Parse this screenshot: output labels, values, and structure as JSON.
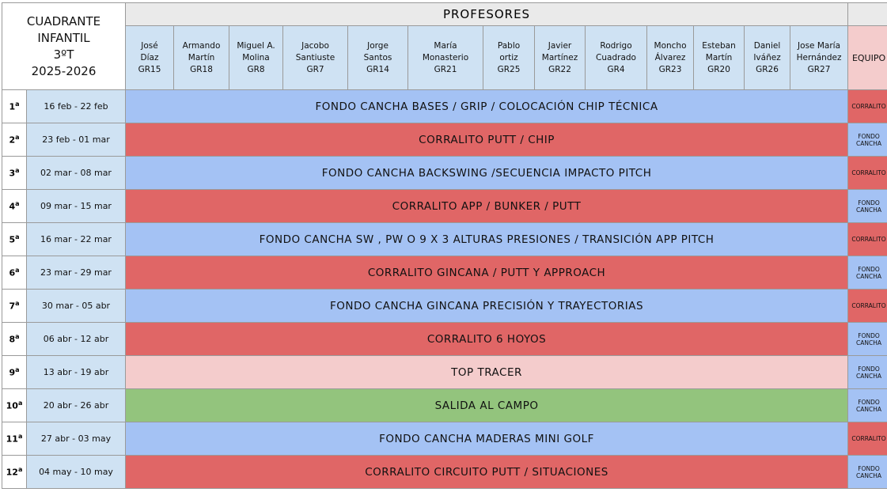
{
  "header": {
    "title_lines": [
      "CUADRANTE",
      "INFANTIL",
      "3ºT",
      "2025-2026"
    ],
    "profesores_label": "PROFESORES",
    "equipo_label": "EQUIPO"
  },
  "teachers": [
    {
      "first": "José",
      "last": "Díaz",
      "group": "GR15"
    },
    {
      "first": "Armando",
      "last": "Martín",
      "group": "GR18"
    },
    {
      "first": "Miguel A.",
      "last": "Molina",
      "group": "GR8"
    },
    {
      "first": "Jacobo",
      "last": "Santiuste",
      "group": "GR7"
    },
    {
      "first": "Jorge",
      "last": "Santos",
      "group": "GR14"
    },
    {
      "first": "María",
      "last": "Monasterio",
      "group": "GR21"
    },
    {
      "first": "Pablo",
      "last": "ortiz",
      "group": "GR25"
    },
    {
      "first": "Javier",
      "last": "Martínez",
      "group": "GR22"
    },
    {
      "first": "Rodrigo",
      "last": "Cuadrado",
      "group": "GR4"
    },
    {
      "first": "Moncho",
      "last": "Álvarez",
      "group": "GR23"
    },
    {
      "first": "Esteban",
      "last": "Martín",
      "group": "GR20"
    },
    {
      "first": "Daniel",
      "last": "Iváñez",
      "group": "GR26"
    },
    {
      "first": "Jose María",
      "last": "Hernández",
      "group": "GR27"
    }
  ],
  "weeks": [
    {
      "num": "1",
      "sup": "a",
      "dates": "16 feb - 22 feb",
      "activity": "FONDO CANCHA BASES / GRIP / COLOCACIÓN CHIP TÉCNICA",
      "color": "blue",
      "equipo": [
        "CORRALITO"
      ],
      "equipo_color": "red"
    },
    {
      "num": "2",
      "sup": "a",
      "dates": "23 feb - 01 mar",
      "activity": "CORRALITO PUTT / CHIP",
      "color": "red",
      "equipo": [
        "FONDO",
        "CANCHA"
      ],
      "equipo_color": "blue"
    },
    {
      "num": "3",
      "sup": "a",
      "dates": "02 mar - 08 mar",
      "activity": "FONDO CANCHA BACKSWING /SECUENCIA IMPACTO PITCH",
      "color": "blue",
      "equipo": [
        "CORRALITO"
      ],
      "equipo_color": "red"
    },
    {
      "num": "4",
      "sup": "a",
      "dates": "09 mar - 15 mar",
      "activity": "CORRALITO APP / BUNKER / PUTT",
      "color": "red",
      "equipo": [
        "FONDO",
        "CANCHA"
      ],
      "equipo_color": "blue"
    },
    {
      "num": "5",
      "sup": "a",
      "dates": "16 mar - 22 mar",
      "activity": "FONDO CANCHA SW , PW o 9 X 3 ALTURAS PRESIONES / TRANSICIÓN APP PITCH",
      "color": "blue",
      "equipo": [
        "CORRALITO"
      ],
      "equipo_color": "red"
    },
    {
      "num": "6",
      "sup": "a",
      "dates": "23 mar - 29 mar",
      "activity": "CORRALITO GINCANA / PUTT Y APPROACH",
      "color": "red",
      "equipo": [
        "FONDO",
        "CANCHA"
      ],
      "equipo_color": "blue"
    },
    {
      "num": "7",
      "sup": "a",
      "dates": "30 mar - 05 abr",
      "activity": "FONDO CANCHA GINCANA PRECISIÓN Y TRAYECTORIAS",
      "color": "blue",
      "equipo": [
        "CORRALITO"
      ],
      "equipo_color": "red"
    },
    {
      "num": "8",
      "sup": "a",
      "dates": "06 abr - 12 abr",
      "activity": "CORRALITO 6 HOYOS",
      "color": "red",
      "equipo": [
        "FONDO",
        "CANCHA"
      ],
      "equipo_color": "blue"
    },
    {
      "num": "9",
      "sup": "a",
      "dates": "13 abr - 19 abr",
      "activity": "TOP  TRACER",
      "color": "pink",
      "equipo": [
        "FONDO",
        "CANCHA"
      ],
      "equipo_color": "blue"
    },
    {
      "num": "10",
      "sup": "a",
      "dates": "20 abr - 26 abr",
      "activity": "SALIDA AL CAMPO",
      "color": "green",
      "equipo": [
        "FONDO",
        "CANCHA"
      ],
      "equipo_color": "blue"
    },
    {
      "num": "11",
      "sup": "a",
      "dates": "27 abr - 03 may",
      "activity": "FONDO CANCHA MADERAS MINI GOLF",
      "color": "blue",
      "equipo": [
        "CORRALITO"
      ],
      "equipo_color": "red"
    },
    {
      "num": "12",
      "sup": "a",
      "dates": "04 may - 10 may",
      "activity": "CORRALITO CIRCUITO PUTT / SITUACIONES",
      "color": "red",
      "equipo": [
        "FONDO",
        "CANCHA"
      ],
      "equipo_color": "blue"
    }
  ],
  "colors": {
    "blue": "#a4c2f4",
    "red": "#e06666",
    "pink": "#f4cccc",
    "green": "#93c47d",
    "light_blue": "#cfe2f3"
  }
}
